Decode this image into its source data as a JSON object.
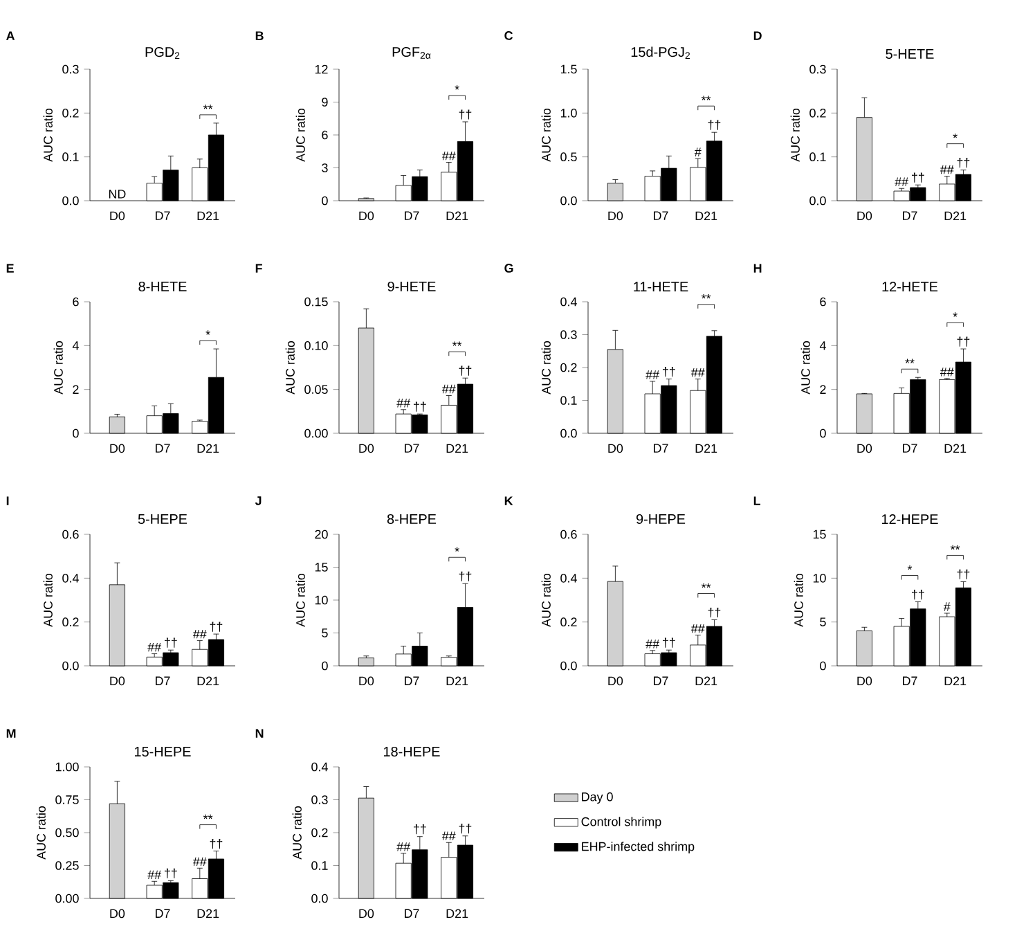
{
  "chart_data": [
    {
      "type": "bar",
      "title": "PGD$_{2}$",
      "ylabel": "AUC ratio",
      "categories": [
        "D0",
        "D7",
        "D21"
      ],
      "ylim": [
        0,
        0.3
      ],
      "yticks": [
        {
          "value": 0,
          "label": "0.0"
        },
        0.1,
        0.2,
        0.3
      ],
      "annotations": [
        "A",
        "**"
      ],
      "series": [
        {
          "color": "#d0d0d0",
          "values": [
            null,
            null,
            null
          ],
          "value_labels": [
            "ND",
            null,
            null
          ]
        },
        {
          "color": "#ffffff",
          "values": [
            null,
            0.04,
            0.075
          ],
          "errors": [
            null,
            0.015,
            0.02
          ]
        },
        {
          "color": "#000000",
          "values": [
            null,
            0.07,
            0.15
          ],
          "errors": [
            null,
            0.032,
            0.027
          ]
        }
      ]
    },
    {
      "type": "bar",
      "title": "PGF$_{2α}$",
      "ylabel": "AUC ratio",
      "categories": [
        "D0",
        "D7",
        "D21"
      ],
      "ylim": [
        0,
        12
      ],
      "yticks": [
        0,
        3,
        6,
        9,
        12
      ],
      "annotations": [
        "B",
        "*"
      ],
      "series": [
        {
          "color": "#d0d0d0",
          "values": [
            0.2,
            null,
            null
          ],
          "errors": [
            0.05,
            null,
            null
          ]
        },
        {
          "color": "#ffffff",
          "values": [
            null,
            1.4,
            2.6
          ],
          "errors": [
            null,
            0.9,
            0.9
          ],
          "value_labels": [
            null,
            null,
            "##"
          ]
        },
        {
          "color": "#000000",
          "values": [
            null,
            2.2,
            5.4
          ],
          "errors": [
            null,
            0.6,
            1.8
          ],
          "value_labels": [
            null,
            null,
            "††"
          ]
        }
      ]
    },
    {
      "type": "bar",
      "title": "15d-PGJ$_{2}$",
      "ylabel": "AUC ratio",
      "categories": [
        "D0",
        "D7",
        "D21"
      ],
      "ylim": [
        0,
        1.5
      ],
      "yticks": [
        {
          "value": 0,
          "label": "0.0"
        },
        0.5,
        {
          "value": 1,
          "label": "1.0"
        },
        1.5
      ],
      "annotations": [
        "C",
        "**"
      ],
      "series": [
        {
          "color": "#d0d0d0",
          "values": [
            0.2,
            null,
            null
          ],
          "errors": [
            0.04,
            null,
            null
          ]
        },
        {
          "color": "#ffffff",
          "values": [
            null,
            0.28,
            0.38
          ],
          "errors": [
            null,
            0.06,
            0.1
          ],
          "value_labels": [
            null,
            null,
            "#"
          ]
        },
        {
          "color": "#000000",
          "values": [
            null,
            0.37,
            0.68
          ],
          "errors": [
            null,
            0.14,
            0.1
          ],
          "value_labels": [
            null,
            null,
            "††"
          ]
        }
      ]
    },
    {
      "type": "bar",
      "title": "5-HETE",
      "ylabel": "AUC ratio",
      "categories": [
        "D0",
        "D7",
        "D21"
      ],
      "ylim": [
        0,
        0.3
      ],
      "yticks": [
        {
          "value": 0,
          "label": "0.0"
        },
        0.1,
        0.2,
        0.3
      ],
      "annotations": [
        "D",
        "*"
      ],
      "series": [
        {
          "color": "#d0d0d0",
          "values": [
            0.19,
            null,
            null
          ],
          "errors": [
            0.045,
            null,
            null
          ]
        },
        {
          "color": "#ffffff",
          "values": [
            null,
            0.022,
            0.038
          ],
          "errors": [
            null,
            0.006,
            0.018
          ],
          "value_labels": [
            null,
            "##",
            "##"
          ]
        },
        {
          "color": "#000000",
          "values": [
            null,
            0.03,
            0.06
          ],
          "errors": [
            null,
            0.006,
            0.01
          ],
          "value_labels": [
            null,
            "††",
            "††"
          ]
        }
      ]
    },
    {
      "type": "bar",
      "title": "8-HETE",
      "ylabel": "AUC ratio",
      "categories": [
        "D0",
        "D7",
        "D21"
      ],
      "ylim": [
        0,
        6
      ],
      "yticks": [
        0,
        2,
        4,
        6
      ],
      "annotations": [
        "E",
        "*"
      ],
      "series": [
        {
          "color": "#d0d0d0",
          "values": [
            0.75,
            null,
            null
          ],
          "errors": [
            0.12,
            null,
            null
          ]
        },
        {
          "color": "#ffffff",
          "values": [
            null,
            0.8,
            0.55
          ],
          "errors": [
            null,
            0.45,
            0.05
          ]
        },
        {
          "color": "#000000",
          "values": [
            null,
            0.9,
            2.55
          ],
          "errors": [
            null,
            0.45,
            1.3
          ]
        }
      ]
    },
    {
      "type": "bar",
      "title": "9-HETE",
      "ylabel": "AUC ratio",
      "categories": [
        "D0",
        "D7",
        "D21"
      ],
      "ylim": [
        0,
        0.15
      ],
      "yticks": [
        {
          "value": 0,
          "label": "0.00"
        },
        0.05,
        {
          "value": 0.1,
          "label": "0.10"
        },
        0.15
      ],
      "annotations": [
        "F",
        "**"
      ],
      "series": [
        {
          "color": "#d0d0d0",
          "values": [
            0.12,
            null,
            null
          ],
          "errors": [
            0.022,
            null,
            null
          ]
        },
        {
          "color": "#ffffff",
          "values": [
            null,
            0.022,
            0.032
          ],
          "errors": [
            null,
            0.005,
            0.011
          ],
          "value_labels": [
            null,
            "##",
            "##"
          ]
        },
        {
          "color": "#000000",
          "values": [
            null,
            0.021,
            0.056
          ],
          "errors": [
            null,
            0.001,
            0.007
          ],
          "value_labels": [
            null,
            "††",
            "††"
          ]
        }
      ]
    },
    {
      "type": "bar",
      "title": "11-HETE",
      "ylabel": "AUC ratio",
      "categories": [
        "D0",
        "D7",
        "D21"
      ],
      "ylim": [
        0,
        0.4
      ],
      "yticks": [
        {
          "value": 0,
          "label": "0.0"
        },
        0.1,
        0.2,
        0.3,
        0.4
      ],
      "annotations": [
        "G",
        "**"
      ],
      "series": [
        {
          "color": "#d0d0d0",
          "values": [
            0.255,
            null,
            null
          ],
          "errors": [
            0.058,
            null,
            null
          ]
        },
        {
          "color": "#ffffff",
          "values": [
            null,
            0.12,
            0.13
          ],
          "errors": [
            null,
            0.038,
            0.035
          ],
          "value_labels": [
            null,
            "##",
            "##"
          ]
        },
        {
          "color": "#000000",
          "values": [
            null,
            0.145,
            0.295
          ],
          "errors": [
            null,
            0.02,
            0.017
          ],
          "value_labels": [
            null,
            "††",
            null
          ]
        }
      ]
    },
    {
      "type": "bar",
      "title": "12-HETE",
      "ylabel": "AUC ratio",
      "categories": [
        "D0",
        "D7",
        "D21"
      ],
      "ylim": [
        0,
        6
      ],
      "yticks": [
        0,
        2,
        4,
        6
      ],
      "annotations": [
        "H",
        "**",
        "*"
      ],
      "series": [
        {
          "color": "#d0d0d0",
          "values": [
            1.8,
            null,
            null
          ],
          "errors": [
            0.02,
            null,
            null
          ]
        },
        {
          "color": "#ffffff",
          "values": [
            null,
            1.82,
            2.45
          ],
          "errors": [
            null,
            0.25,
            0.05
          ],
          "value_labels": [
            null,
            null,
            "##"
          ]
        },
        {
          "color": "#000000",
          "values": [
            null,
            2.45,
            3.25
          ],
          "errors": [
            null,
            0.1,
            0.6
          ],
          "value_labels": [
            null,
            null,
            "††"
          ]
        }
      ]
    },
    {
      "type": "bar",
      "title": "5-HEPE",
      "ylabel": "AUC ratio",
      "categories": [
        "D0",
        "D7",
        "D21"
      ],
      "ylim": [
        0,
        0.6
      ],
      "yticks": [
        {
          "value": 0,
          "label": "0.0"
        },
        0.2,
        0.4,
        0.6
      ],
      "annotations": [
        "I"
      ],
      "series": [
        {
          "color": "#d0d0d0",
          "values": [
            0.37,
            null,
            null
          ],
          "errors": [
            0.1,
            null,
            null
          ]
        },
        {
          "color": "#ffffff",
          "values": [
            null,
            0.04,
            0.075
          ],
          "errors": [
            null,
            0.015,
            0.04
          ],
          "value_labels": [
            null,
            "##",
            "##"
          ]
        },
        {
          "color": "#000000",
          "values": [
            null,
            0.06,
            0.12
          ],
          "errors": [
            null,
            0.012,
            0.025
          ],
          "value_labels": [
            null,
            "††",
            "††"
          ]
        }
      ]
    },
    {
      "type": "bar",
      "title": "8-HEPE",
      "ylabel": "AUC ratio",
      "categories": [
        "D0",
        "D7",
        "D21"
      ],
      "ylim": [
        0,
        20
      ],
      "yticks": [
        0,
        5,
        10,
        15,
        20
      ],
      "annotations": [
        "J",
        "*"
      ],
      "series": [
        {
          "color": "#d0d0d0",
          "values": [
            1.2,
            null,
            null
          ],
          "errors": [
            0.3,
            null,
            null
          ]
        },
        {
          "color": "#ffffff",
          "values": [
            null,
            1.8,
            1.3
          ],
          "errors": [
            null,
            1.2,
            0.2
          ]
        },
        {
          "color": "#000000",
          "values": [
            null,
            3.0,
            8.9
          ],
          "errors": [
            null,
            2.0,
            3.6
          ],
          "value_labels": [
            null,
            null,
            "††"
          ]
        }
      ]
    },
    {
      "type": "bar",
      "title": "9-HEPE",
      "ylabel": "AUC ratio",
      "categories": [
        "D0",
        "D7",
        "D21"
      ],
      "ylim": [
        0,
        0.6
      ],
      "yticks": [
        {
          "value": 0,
          "label": "0.0"
        },
        0.2,
        0.4,
        0.6
      ],
      "annotations": [
        "K",
        "**"
      ],
      "series": [
        {
          "color": "#d0d0d0",
          "values": [
            0.385,
            null,
            null
          ],
          "errors": [
            0.07,
            null,
            null
          ]
        },
        {
          "color": "#ffffff",
          "values": [
            null,
            0.055,
            0.095
          ],
          "errors": [
            null,
            0.015,
            0.045
          ],
          "value_labels": [
            null,
            "##",
            "##"
          ]
        },
        {
          "color": "#000000",
          "values": [
            null,
            0.06,
            0.18
          ],
          "errors": [
            null,
            0.012,
            0.03
          ],
          "value_labels": [
            null,
            "††",
            "††"
          ]
        }
      ]
    },
    {
      "type": "bar",
      "title": "12-HEPE",
      "ylabel": "AUC ratio",
      "categories": [
        "D0",
        "D7",
        "D21"
      ],
      "ylim": [
        0,
        15
      ],
      "yticks": [
        0,
        5,
        10,
        15
      ],
      "annotations": [
        "L",
        "*",
        "**"
      ],
      "series": [
        {
          "color": "#d0d0d0",
          "values": [
            4.0,
            null,
            null
          ],
          "errors": [
            0.4,
            null,
            null
          ]
        },
        {
          "color": "#ffffff",
          "values": [
            null,
            4.5,
            5.6
          ],
          "errors": [
            null,
            0.9,
            0.4
          ],
          "value_labels": [
            null,
            null,
            "#"
          ]
        },
        {
          "color": "#000000",
          "values": [
            null,
            6.5,
            8.9
          ],
          "errors": [
            null,
            0.8,
            0.7
          ],
          "value_labels": [
            null,
            "††",
            "††"
          ]
        }
      ]
    },
    {
      "type": "bar",
      "title": "15-HEPE",
      "ylabel": "AUC ratio",
      "categories": [
        "D0",
        "D7",
        "D21"
      ],
      "ylim": [
        0,
        1
      ],
      "yticks": [
        {
          "value": 0,
          "label": "0.00"
        },
        0.25,
        {
          "value": 0.5,
          "label": "0.50"
        },
        0.75,
        {
          "value": 1,
          "label": "1.00"
        }
      ],
      "annotations": [
        "M",
        "**"
      ],
      "series": [
        {
          "color": "#d0d0d0",
          "values": [
            0.72,
            null,
            null
          ],
          "errors": [
            0.17,
            null,
            null
          ]
        },
        {
          "color": "#ffffff",
          "values": [
            null,
            0.1,
            0.15
          ],
          "errors": [
            null,
            0.03,
            0.08
          ],
          "value_labels": [
            null,
            "##",
            "##"
          ]
        },
        {
          "color": "#000000",
          "values": [
            null,
            0.12,
            0.3
          ],
          "errors": [
            null,
            0.015,
            0.06
          ],
          "value_labels": [
            null,
            "††",
            "††"
          ]
        }
      ]
    },
    {
      "type": "bar",
      "title": "18-HEPE",
      "ylabel": "AUC ratio",
      "categories": [
        "D0",
        "D7",
        "D21"
      ],
      "ylim": [
        0,
        0.4
      ],
      "yticks": [
        {
          "value": 0,
          "label": "0.0"
        },
        0.1,
        0.2,
        0.3,
        0.4
      ],
      "annotations": [
        "N"
      ],
      "legend": "right",
      "series": [
        {
          "name": "Day 0",
          "color": "#d0d0d0",
          "values": [
            0.305,
            null,
            null
          ],
          "errors": [
            0.035,
            null,
            null
          ]
        },
        {
          "name": "Control shrimp",
          "color": "#ffffff",
          "values": [
            null,
            0.107,
            0.125
          ],
          "errors": [
            null,
            0.03,
            0.045
          ],
          "value_labels": [
            null,
            "##",
            "##"
          ]
        },
        {
          "name": "EHP-infected shrimp",
          "color": "#000000",
          "values": [
            null,
            0.148,
            0.162
          ],
          "errors": [
            null,
            0.04,
            0.028
          ],
          "value_labels": [
            null,
            "††",
            "††"
          ]
        }
      ]
    }
  ]
}
